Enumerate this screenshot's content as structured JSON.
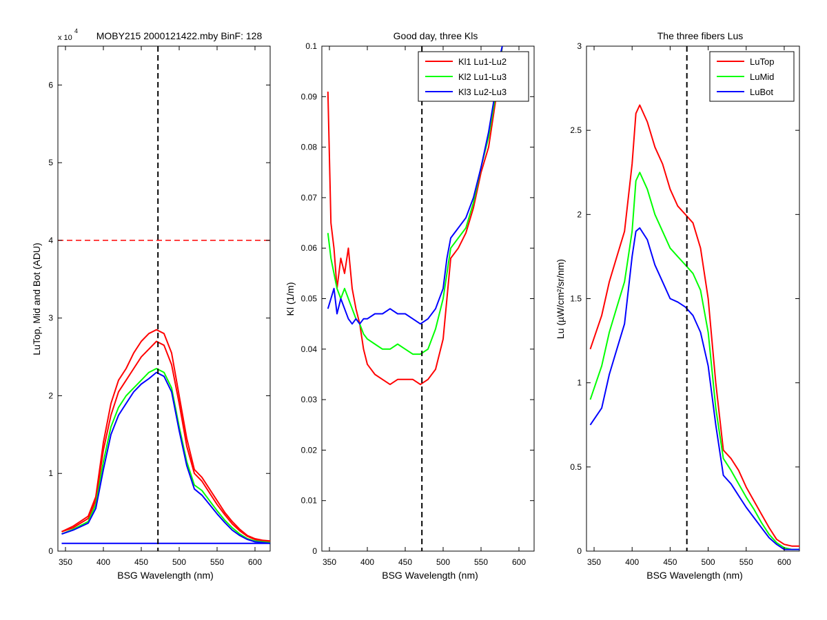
{
  "chart_data": [
    {
      "type": "line",
      "title": "MOBY215  2000121422.mby BinF: 128",
      "exponent_base": "x 10",
      "exponent_power": "4",
      "xlabel": "BSG Wavelength (nm)",
      "ylabel": "LuTop, Mid and Bot (ADU)",
      "xlim": [
        340,
        620
      ],
      "ylim": [
        0,
        6.5
      ],
      "xticks": [
        350,
        400,
        450,
        500,
        550,
        600
      ],
      "yticks": [
        0,
        1,
        2,
        3,
        4,
        5,
        6
      ],
      "grid": false,
      "vline": 472,
      "hline": {
        "y": 4.0,
        "color": "#ff0000",
        "dashed": true
      },
      "colors": {
        "top": "#ff0000",
        "mid": "#00ff00",
        "bot": "#0000ff"
      },
      "series": [
        {
          "color": "#ff0000",
          "x": [
            345,
            360,
            380,
            390,
            400,
            410,
            420,
            430,
            440,
            450,
            460,
            470,
            480,
            490,
            500,
            510,
            520,
            530,
            540,
            550,
            560,
            570,
            580,
            590,
            600,
            610,
            620
          ],
          "values": [
            0.25,
            0.32,
            0.45,
            0.7,
            1.4,
            1.9,
            2.2,
            2.35,
            2.55,
            2.7,
            2.8,
            2.85,
            2.8,
            2.55,
            2.0,
            1.45,
            1.05,
            0.95,
            0.8,
            0.65,
            0.5,
            0.38,
            0.28,
            0.2,
            0.16,
            0.14,
            0.13
          ]
        },
        {
          "color": "#ff0000",
          "x": [
            345,
            360,
            380,
            390,
            400,
            410,
            420,
            430,
            440,
            450,
            460,
            470,
            480,
            490,
            500,
            510,
            520,
            530,
            540,
            550,
            560,
            570,
            580,
            590,
            600,
            610,
            620
          ],
          "values": [
            0.25,
            0.3,
            0.42,
            0.65,
            1.3,
            1.75,
            2.05,
            2.2,
            2.35,
            2.5,
            2.6,
            2.7,
            2.65,
            2.4,
            1.9,
            1.35,
            1.0,
            0.9,
            0.75,
            0.6,
            0.47,
            0.35,
            0.26,
            0.19,
            0.15,
            0.13,
            0.12
          ]
        },
        {
          "color": "#00ff00",
          "x": [
            345,
            360,
            380,
            390,
            400,
            410,
            420,
            430,
            440,
            450,
            460,
            470,
            480,
            490,
            500,
            510,
            520,
            530,
            540,
            550,
            560,
            570,
            580,
            590,
            600,
            610,
            620
          ],
          "values": [
            0.22,
            0.28,
            0.38,
            0.6,
            1.15,
            1.6,
            1.85,
            2.0,
            2.1,
            2.2,
            2.3,
            2.35,
            2.3,
            2.1,
            1.6,
            1.15,
            0.85,
            0.78,
            0.65,
            0.52,
            0.4,
            0.3,
            0.22,
            0.16,
            0.13,
            0.12,
            0.11
          ]
        },
        {
          "color": "#0000ff",
          "x": [
            345,
            360,
            380,
            390,
            400,
            410,
            420,
            430,
            440,
            450,
            460,
            470,
            480,
            490,
            500,
            510,
            520,
            530,
            540,
            550,
            560,
            570,
            580,
            590,
            600,
            610,
            620
          ],
          "values": [
            0.22,
            0.27,
            0.36,
            0.55,
            1.05,
            1.5,
            1.75,
            1.9,
            2.05,
            2.15,
            2.22,
            2.3,
            2.25,
            2.05,
            1.55,
            1.1,
            0.8,
            0.72,
            0.6,
            0.48,
            0.37,
            0.27,
            0.2,
            0.15,
            0.12,
            0.11,
            0.1
          ]
        },
        {
          "color": "#0000ff",
          "x": [
            345,
            620
          ],
          "values": [
            0.1,
            0.1
          ]
        }
      ]
    },
    {
      "type": "line",
      "title": "Good day, three Kls",
      "xlabel": "BSG Wavelength (nm)",
      "ylabel": "Kl (1/m)",
      "xlim": [
        340,
        620
      ],
      "ylim": [
        0,
        0.1
      ],
      "xticks": [
        350,
        400,
        450,
        500,
        550,
        600
      ],
      "yticks": [
        0,
        0.01,
        0.02,
        0.03,
        0.04,
        0.05,
        0.06,
        0.07,
        0.08,
        0.09,
        0.1
      ],
      "grid": false,
      "vline": 472,
      "legend_position": "top-right",
      "series": [
        {
          "name": "Kl1 Lu1-Lu2",
          "color": "#ff0000",
          "x": [
            348,
            352,
            356,
            360,
            365,
            370,
            375,
            380,
            385,
            390,
            395,
            400,
            410,
            420,
            430,
            440,
            450,
            460,
            470,
            480,
            490,
            500,
            505,
            510,
            520,
            530,
            540,
            550,
            560,
            570,
            575,
            578
          ],
          "values": [
            0.091,
            0.065,
            0.06,
            0.052,
            0.058,
            0.055,
            0.06,
            0.052,
            0.048,
            0.045,
            0.04,
            0.037,
            0.035,
            0.034,
            0.033,
            0.034,
            0.034,
            0.034,
            0.033,
            0.034,
            0.036,
            0.042,
            0.05,
            0.058,
            0.06,
            0.063,
            0.068,
            0.075,
            0.08,
            0.09,
            0.096,
            0.1
          ]
        },
        {
          "name": "Kl2 Lu1-Lu3",
          "color": "#00ff00",
          "x": [
            348,
            352,
            356,
            360,
            365,
            370,
            375,
            380,
            385,
            390,
            395,
            400,
            410,
            420,
            430,
            440,
            450,
            460,
            470,
            480,
            490,
            500,
            505,
            510,
            520,
            530,
            540,
            550,
            560,
            570,
            575,
            578
          ],
          "values": [
            0.063,
            0.058,
            0.055,
            0.052,
            0.05,
            0.052,
            0.05,
            0.048,
            0.046,
            0.045,
            0.043,
            0.042,
            0.041,
            0.04,
            0.04,
            0.041,
            0.04,
            0.039,
            0.039,
            0.04,
            0.044,
            0.05,
            0.055,
            0.06,
            0.062,
            0.064,
            0.069,
            0.076,
            0.082,
            0.091,
            0.097,
            0.1
          ]
        },
        {
          "name": "Kl3 Lu2-Lu3",
          "color": "#0000ff",
          "x": [
            348,
            352,
            356,
            360,
            365,
            370,
            375,
            380,
            385,
            390,
            395,
            400,
            410,
            420,
            430,
            440,
            450,
            460,
            470,
            480,
            490,
            500,
            505,
            510,
            520,
            530,
            540,
            550,
            560,
            570,
            575,
            578
          ],
          "values": [
            0.048,
            0.05,
            0.052,
            0.047,
            0.05,
            0.048,
            0.046,
            0.045,
            0.046,
            0.045,
            0.046,
            0.046,
            0.047,
            0.047,
            0.048,
            0.047,
            0.047,
            0.046,
            0.045,
            0.046,
            0.048,
            0.052,
            0.058,
            0.062,
            0.064,
            0.066,
            0.07,
            0.076,
            0.083,
            0.092,
            0.098,
            0.1
          ]
        }
      ]
    },
    {
      "type": "line",
      "title": "The three fibers Lus",
      "xlabel": "BSG Wavelength (nm)",
      "ylabel": "Lu (µW/cm²/sr/nm)",
      "xlim": [
        340,
        620
      ],
      "ylim": [
        0,
        3
      ],
      "xticks": [
        350,
        400,
        450,
        500,
        550,
        600
      ],
      "yticks": [
        0,
        0.5,
        1,
        1.5,
        2,
        2.5,
        3
      ],
      "grid": false,
      "vline": 472,
      "legend_position": "top-right",
      "series": [
        {
          "name": "LuTop",
          "color": "#ff0000",
          "x": [
            345,
            360,
            370,
            380,
            390,
            400,
            405,
            410,
            420,
            430,
            440,
            450,
            460,
            470,
            480,
            490,
            500,
            510,
            520,
            530,
            540,
            550,
            560,
            570,
            580,
            590,
            600,
            610,
            620
          ],
          "values": [
            1.2,
            1.4,
            1.6,
            1.75,
            1.9,
            2.3,
            2.6,
            2.65,
            2.55,
            2.4,
            2.3,
            2.15,
            2.05,
            2.0,
            1.95,
            1.8,
            1.5,
            1.0,
            0.6,
            0.55,
            0.48,
            0.38,
            0.3,
            0.22,
            0.14,
            0.07,
            0.04,
            0.03,
            0.03
          ]
        },
        {
          "name": "LuMid",
          "color": "#00ff00",
          "x": [
            345,
            360,
            370,
            380,
            390,
            400,
            405,
            410,
            420,
            430,
            440,
            450,
            460,
            470,
            480,
            490,
            500,
            510,
            520,
            530,
            540,
            550,
            560,
            570,
            580,
            590,
            600,
            610,
            620
          ],
          "values": [
            0.9,
            1.1,
            1.3,
            1.45,
            1.6,
            1.9,
            2.2,
            2.25,
            2.15,
            2.0,
            1.9,
            1.8,
            1.75,
            1.7,
            1.65,
            1.55,
            1.3,
            0.85,
            0.55,
            0.48,
            0.4,
            0.32,
            0.25,
            0.17,
            0.1,
            0.05,
            0.02,
            0.01,
            0.01
          ]
        },
        {
          "name": "LuBot",
          "color": "#0000ff",
          "x": [
            345,
            360,
            370,
            380,
            390,
            400,
            405,
            410,
            420,
            430,
            440,
            450,
            460,
            470,
            480,
            490,
            500,
            510,
            520,
            530,
            540,
            550,
            560,
            570,
            580,
            590,
            600,
            610,
            620
          ],
          "values": [
            0.75,
            0.85,
            1.05,
            1.2,
            1.35,
            1.75,
            1.9,
            1.92,
            1.85,
            1.7,
            1.6,
            1.5,
            1.48,
            1.45,
            1.4,
            1.3,
            1.1,
            0.75,
            0.45,
            0.4,
            0.33,
            0.26,
            0.2,
            0.14,
            0.08,
            0.04,
            0.01,
            0.01,
            0.01
          ]
        }
      ]
    }
  ]
}
